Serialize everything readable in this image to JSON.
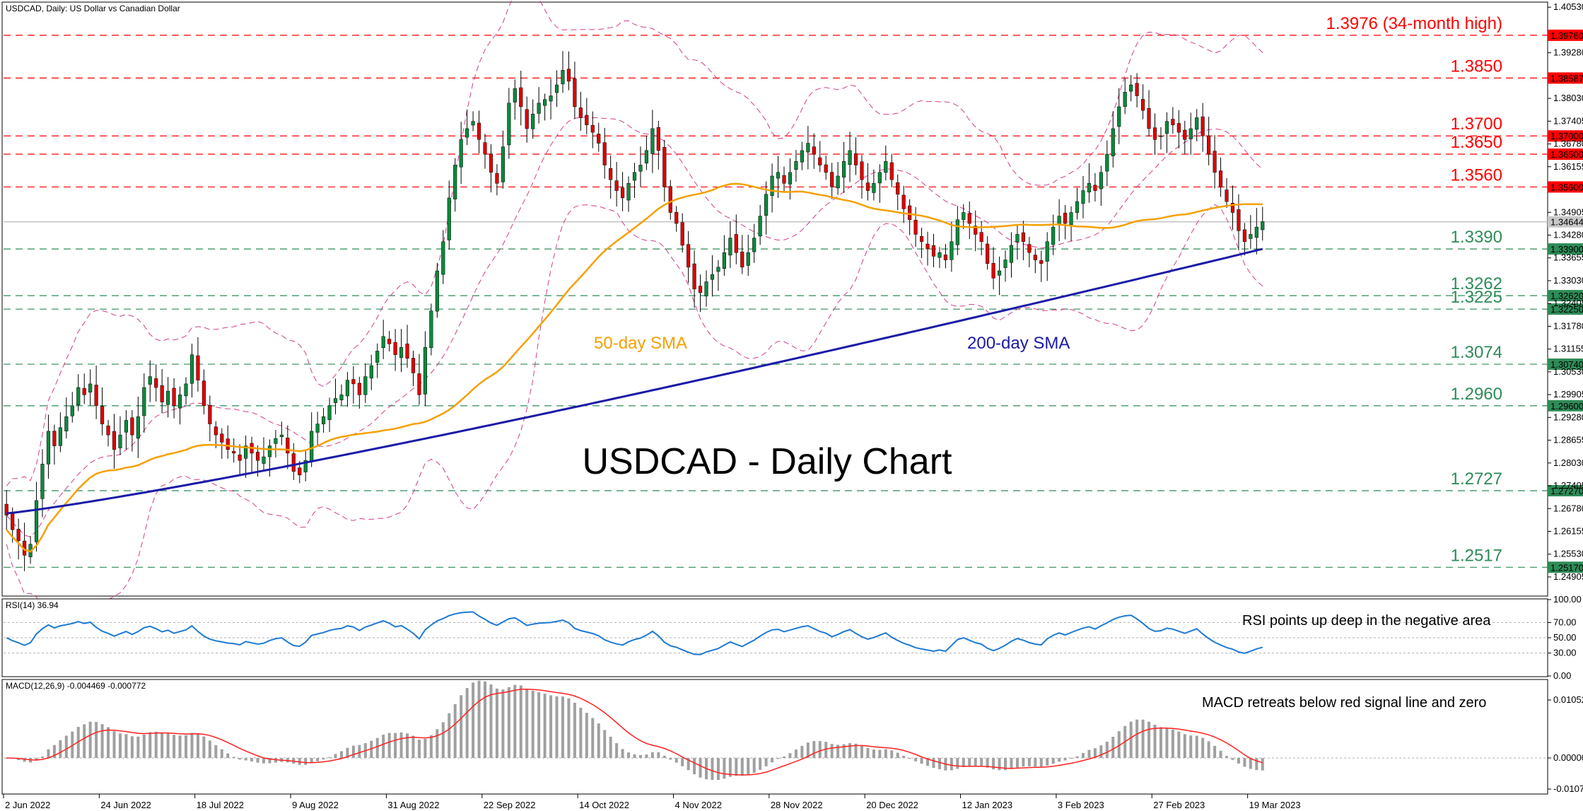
{
  "chart_data": {
    "type": "candlestick",
    "header": {
      "symbol_title": "USDCAD, Daily:  US Dollar vs Canadian Dollar",
      "main_title": "USDCAD - Daily Chart"
    },
    "price_axis": {
      "ylim": [
        1.244,
        1.4065
      ],
      "ticks": [
        "1.40530",
        "1.39280",
        "1.38030",
        "1.37405",
        "1.36780",
        "1.36155",
        "1.34905",
        "1.34280",
        "1.33655",
        "1.33030",
        "1.32405",
        "1.31780",
        "1.31155",
        "1.30530",
        "1.29905",
        "1.29280",
        "1.28655",
        "1.28030",
        "1.27405",
        "1.26780",
        "1.26155",
        "1.25530",
        "1.24905"
      ]
    },
    "x_axis": {
      "date_labels": [
        "2 Jun 2022",
        "24 Jun 2022",
        "18 Jul 2022",
        "9 Aug 2022",
        "31 Aug 2022",
        "22 Sep 2022",
        "14 Oct 2022",
        "4 Nov 2022",
        "28 Nov 2022",
        "20 Dec 2022",
        "12 Jan 2023",
        "3 Feb 2023",
        "27 Feb 2023",
        "19 Mar 2023"
      ],
      "date_label_bar_index": [
        0,
        16,
        32,
        48,
        64,
        80,
        96,
        112,
        128,
        144,
        160,
        176,
        192,
        208
      ]
    },
    "levels": [
      {
        "value": 1.3976,
        "label": "1.3976 (34-month high)",
        "tag": "1.39760",
        "color": "#ff0000"
      },
      {
        "value": 1.38587,
        "label": "1.3850",
        "tag": "1.38587",
        "color": "#ff0000"
      },
      {
        "value": 1.37,
        "label": "1.3700",
        "tag": "1.37000",
        "color": "#ff0000"
      },
      {
        "value": 1.365,
        "label": "1.3650",
        "tag": "1.36500",
        "color": "#ff0000"
      },
      {
        "value": 1.356,
        "label": "1.3560",
        "tag": "1.35600",
        "color": "#ff0000"
      },
      {
        "value": 1.339,
        "label": "1.3390",
        "tag": "1.33900",
        "color": "#2e8b57"
      },
      {
        "value": 1.3262,
        "label": "1.3262",
        "tag": "1.32620",
        "color": "#2e8b57"
      },
      {
        "value": 1.3225,
        "label": "1.3225",
        "tag": "1.32250",
        "color": "#2e8b57"
      },
      {
        "value": 1.3074,
        "label": "1.3074",
        "tag": "1.30740",
        "color": "#2e8b57"
      },
      {
        "value": 1.296,
        "label": "1.2960",
        "tag": "1.29600",
        "color": "#2e8b57"
      },
      {
        "value": 1.2727,
        "label": "1.2727",
        "tag": "1.27270",
        "color": "#2e8b57"
      },
      {
        "value": 1.2517,
        "label": "1.2517",
        "tag": "1.25170",
        "color": "#2e8b57"
      }
    ],
    "current_price": {
      "value": 1.34644,
      "tag": "1.34644"
    },
    "indicators": {
      "sma50": {
        "label": "50-day SMA",
        "color": "#f5a000"
      },
      "sma200": {
        "label": "200-day SMA",
        "color": "#1a1aa8"
      },
      "bollinger": {
        "color": "#d23c8c"
      }
    },
    "series_close": [
      1.266,
      1.262,
      1.259,
      1.255,
      1.258,
      1.27,
      1.28,
      1.289,
      1.285,
      1.29,
      1.293,
      1.296,
      1.301,
      1.299,
      1.302,
      1.296,
      1.291,
      1.288,
      1.284,
      1.288,
      1.292,
      1.288,
      1.293,
      1.301,
      1.304,
      1.301,
      1.297,
      1.3,
      1.296,
      1.299,
      1.302,
      1.31,
      1.303,
      1.296,
      1.291,
      1.288,
      1.286,
      1.284,
      1.283,
      1.281,
      1.285,
      1.283,
      1.281,
      1.282,
      1.285,
      1.287,
      1.288,
      1.283,
      1.278,
      1.277,
      1.281,
      1.289,
      1.291,
      1.293,
      1.296,
      1.298,
      1.299,
      1.303,
      1.302,
      1.299,
      1.304,
      1.307,
      1.311,
      1.315,
      1.313,
      1.31,
      1.312,
      1.309,
      1.305,
      1.299,
      1.312,
      1.322,
      1.333,
      1.341,
      1.353,
      1.362,
      1.369,
      1.372,
      1.374,
      1.369,
      1.365,
      1.36,
      1.357,
      1.367,
      1.379,
      1.383,
      1.378,
      1.372,
      1.376,
      1.379,
      1.38,
      1.381,
      1.384,
      1.388,
      1.385,
      1.378,
      1.375,
      1.373,
      1.371,
      1.368,
      1.362,
      1.358,
      1.355,
      1.353,
      1.357,
      1.36,
      1.362,
      1.366,
      1.372,
      1.366,
      1.356,
      1.349,
      1.346,
      1.34,
      1.334,
      1.328,
      1.327,
      1.33,
      1.332,
      1.334,
      1.338,
      1.342,
      1.338,
      1.334,
      1.338,
      1.342,
      1.348,
      1.354,
      1.359,
      1.36,
      1.357,
      1.36,
      1.363,
      1.366,
      1.368,
      1.365,
      1.362,
      1.36,
      1.356,
      1.359,
      1.363,
      1.366,
      1.362,
      1.358,
      1.355,
      1.357,
      1.36,
      1.363,
      1.358,
      1.354,
      1.35,
      1.347,
      1.343,
      1.341,
      1.339,
      1.337,
      1.338,
      1.336,
      1.341,
      1.347,
      1.349,
      1.346,
      1.343,
      1.341,
      1.335,
      1.331,
      1.333,
      1.336,
      1.34,
      1.343,
      1.341,
      1.338,
      1.336,
      1.335,
      1.341,
      1.345,
      1.348,
      1.346,
      1.349,
      1.352,
      1.355,
      1.357,
      1.355,
      1.36,
      1.365,
      1.372,
      1.378,
      1.382,
      1.384,
      1.381,
      1.377,
      1.372,
      1.369,
      1.37,
      1.374,
      1.373,
      1.371,
      1.369,
      1.372,
      1.375,
      1.37,
      1.365,
      1.36,
      1.356,
      1.352,
      1.349,
      1.344,
      1.341,
      1.343,
      1.345,
      1.3465
    ],
    "rsi": {
      "title": "RSI(14) 36.94",
      "ylim": [
        0,
        100
      ],
      "ticks": [
        "100.00",
        "70.00",
        "50.00",
        "30.00",
        "0.00"
      ],
      "annotation": "RSI points up deep in the negative area",
      "color": "#1e7ad2"
    },
    "macd": {
      "title": "MACD(12,26,9) -0.004469 -0.000772",
      "ticks": [
        "0.010521",
        "0.000000",
        "-0.010753"
      ],
      "annotation": "MACD retreats below red signal line and zero",
      "signal_color": "#ff2020",
      "hist_color": "#a0a0a0"
    }
  }
}
